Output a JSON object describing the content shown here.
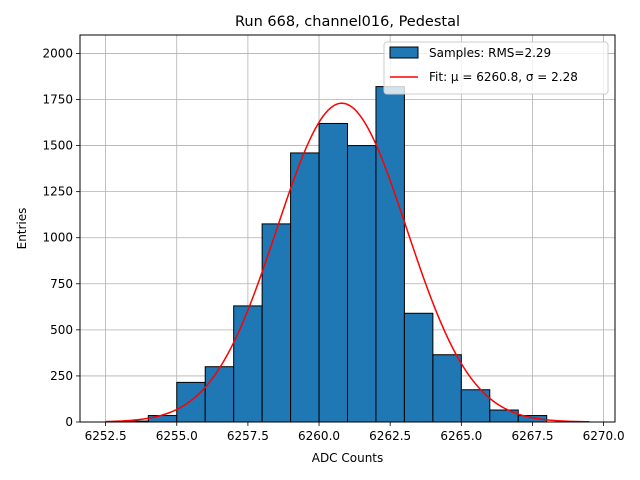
{
  "chart_data": {
    "type": "bar",
    "title": "Run 668, channel016, Pedestal",
    "xlabel": "ADC Counts",
    "ylabel": "Entries",
    "xlim": [
      6251.6,
      6270.4
    ],
    "ylim": [
      0,
      2100
    ],
    "grid": true,
    "legend_position": "top-right",
    "x_ticks": [
      6252.5,
      6255.0,
      6257.5,
      6260.0,
      6262.5,
      6265.0,
      6267.5,
      6270.0
    ],
    "x_tick_labels": [
      "6252.5",
      "6255.0",
      "6257.5",
      "6260.0",
      "6262.5",
      "6265.0",
      "6267.5",
      "6270.0"
    ],
    "y_ticks": [
      0,
      250,
      500,
      750,
      1000,
      1250,
      1500,
      1750,
      2000
    ],
    "y_tick_labels": [
      "0",
      "250",
      "500",
      "750",
      "1000",
      "1250",
      "1500",
      "1750",
      "2000"
    ],
    "bin_edges": [
      6253,
      6254,
      6255,
      6256,
      6257,
      6258,
      6259,
      6260,
      6261,
      6262,
      6263,
      6264,
      6265,
      6266,
      6267,
      6268
    ],
    "series": [
      {
        "name": "Samples: RMS=2.29",
        "kind": "histogram",
        "color": "#1f77b4",
        "edgecolor": "#000000",
        "values": [
          5,
          35,
          215,
          300,
          630,
          1075,
          1460,
          1620,
          1500,
          1820,
          590,
          365,
          175,
          65,
          35
        ]
      },
      {
        "name": "Fit: μ = 6260.8, σ = 2.28",
        "kind": "gaussian",
        "color": "#ff0000",
        "mu": 6260.8,
        "sigma": 2.28,
        "amplitude": 1730,
        "x_range": [
          6252.5,
          6269.5
        ]
      }
    ]
  }
}
